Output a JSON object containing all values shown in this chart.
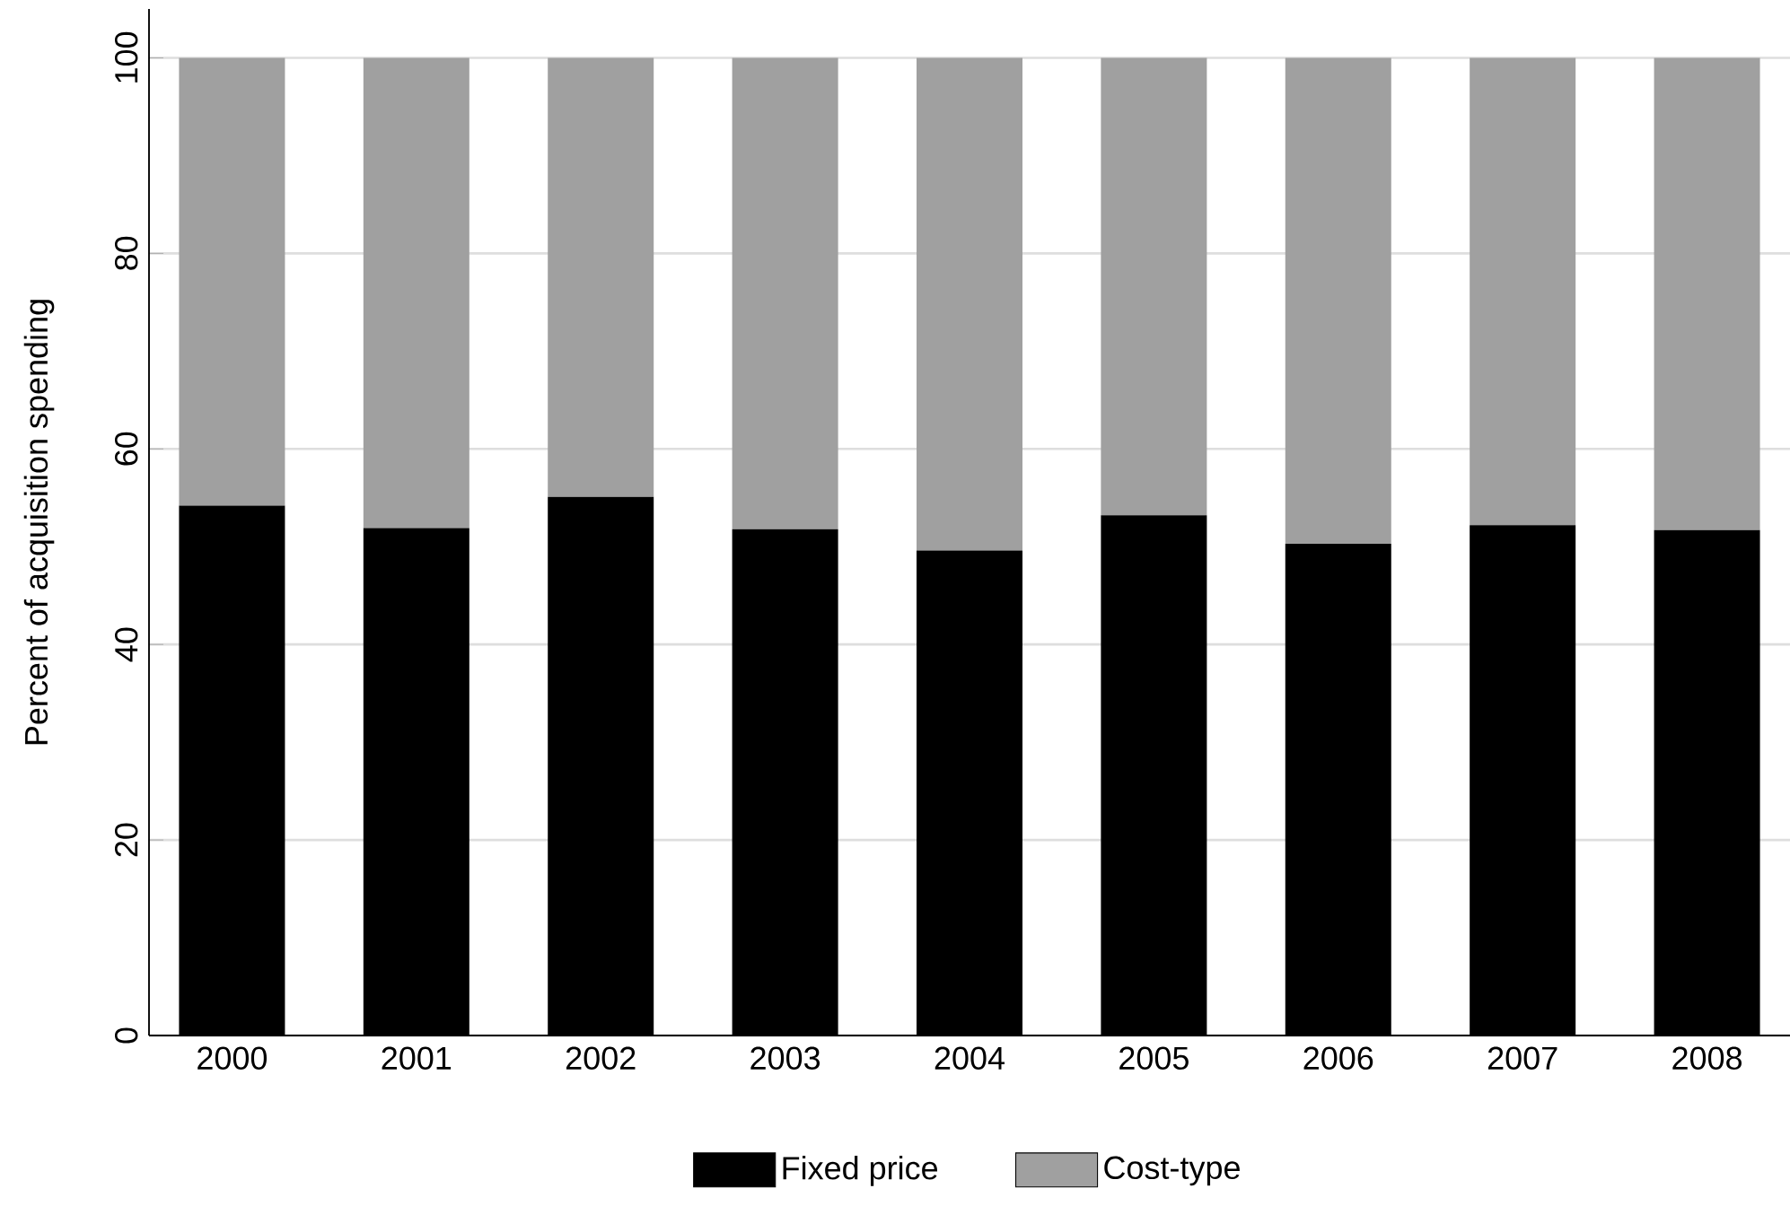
{
  "chart_data": {
    "type": "bar",
    "stacked": true,
    "ylabel": "Percent of acquisition spending",
    "categories": [
      "2000",
      "2001",
      "2002",
      "2003",
      "2004",
      "2005",
      "2006",
      "2007",
      "2008"
    ],
    "series": [
      {
        "name": "Fixed price",
        "color": "#000000",
        "values": [
          54.2,
          51.9,
          55.1,
          51.8,
          49.6,
          53.2,
          50.3,
          52.2,
          51.7
        ]
      },
      {
        "name": "Cost-type",
        "color": "#a0a0a0",
        "values": [
          45.8,
          48.1,
          44.9,
          48.2,
          50.4,
          46.8,
          49.7,
          47.8,
          48.3
        ]
      }
    ],
    "ylim": [
      0,
      105
    ],
    "yticks": [
      0,
      20,
      40,
      60,
      80,
      100
    ],
    "grid": "y",
    "legend": "bottom"
  }
}
